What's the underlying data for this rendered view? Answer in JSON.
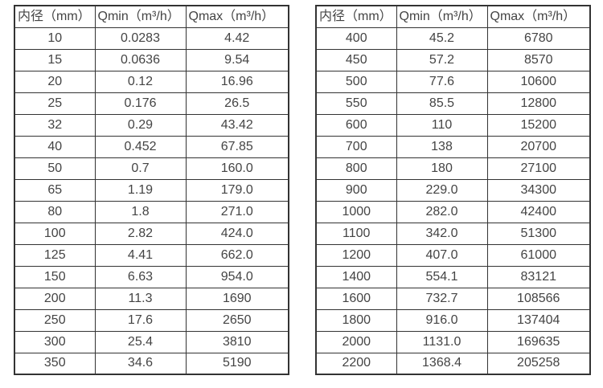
{
  "colors": {
    "border": "#333333",
    "text": "#444444",
    "background": "#ffffff"
  },
  "tables": [
    {
      "name": "small-diameter-flow-table",
      "headers": [
        "内径（mm）",
        "Qmin（m³/h）",
        "Qmax（m³/h）"
      ],
      "rows": [
        [
          "10",
          "0.0283",
          "4.42"
        ],
        [
          "15",
          "0.0636",
          "9.54"
        ],
        [
          "20",
          "0.12",
          "16.96"
        ],
        [
          "25",
          "0.176",
          "26.5"
        ],
        [
          "32",
          "0.29",
          "43.42"
        ],
        [
          "40",
          "0.452",
          "67.85"
        ],
        [
          "50",
          "0.7",
          "160.0"
        ],
        [
          "65",
          "1.19",
          "179.0"
        ],
        [
          "80",
          "1.8",
          "271.0"
        ],
        [
          "100",
          "2.82",
          "424.0"
        ],
        [
          "125",
          "4.41",
          "662.0"
        ],
        [
          "150",
          "6.63",
          "954.0"
        ],
        [
          "200",
          "11.3",
          "1690"
        ],
        [
          "250",
          "17.6",
          "2650"
        ],
        [
          "300",
          "25.4",
          "3810"
        ],
        [
          "350",
          "34.6",
          "5190"
        ]
      ]
    },
    {
      "name": "large-diameter-flow-table",
      "headers": [
        "内径（mm）",
        "Qmin（m³/h）",
        "Qmax（m³/h）"
      ],
      "rows": [
        [
          "400",
          "45.2",
          "6780"
        ],
        [
          "450",
          "57.2",
          "8570"
        ],
        [
          "500",
          "77.6",
          "10600"
        ],
        [
          "550",
          "85.5",
          "12800"
        ],
        [
          "600",
          "110",
          "15200"
        ],
        [
          "700",
          "138",
          "20700"
        ],
        [
          "800",
          "180",
          "27100"
        ],
        [
          "900",
          "229.0",
          "34300"
        ],
        [
          "1000",
          "282.0",
          "42400"
        ],
        [
          "1100",
          "342.0",
          "51300"
        ],
        [
          "1200",
          "407.0",
          "61000"
        ],
        [
          "1400",
          "554.1",
          "83121"
        ],
        [
          "1600",
          "732.7",
          "108566"
        ],
        [
          "1800",
          "916.0",
          "137404"
        ],
        [
          "2000",
          "1131.0",
          "169635"
        ],
        [
          "2200",
          "1368.4",
          "205258"
        ]
      ]
    }
  ]
}
